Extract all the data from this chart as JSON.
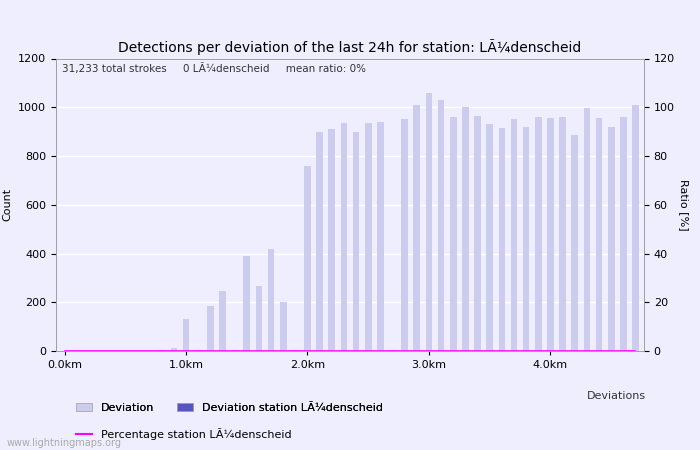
{
  "title": "Detections per deviation of the last 24h for station: LÃ¼denscheid",
  "annotation_parts": [
    "31,233 total strokes",
    "0 LÃ¼denscheid",
    "mean ratio: 0%"
  ],
  "ylabel_left": "Count",
  "ylabel_right": "Ratio [%]",
  "watermark": "www.lightningmaps.org",
  "ylim_left": [
    0,
    1200
  ],
  "ylim_right": [
    0,
    120
  ],
  "yticks_left": [
    0,
    200,
    400,
    600,
    800,
    1000,
    1200
  ],
  "yticks_right": [
    0,
    20,
    40,
    60,
    80,
    100,
    120
  ],
  "xtick_labels": [
    "0.0km",
    "1.0km",
    "2.0km",
    "3.0km",
    "4.0km"
  ],
  "xtick_positions": [
    0,
    10,
    20,
    30,
    40
  ],
  "bar_width": 0.55,
  "bar_color_light": "#ccccee",
  "bar_color_dark": "#5555bb",
  "line_color": "#ff00ff",
  "background_color": "#eeeeff",
  "grid_color": "#ffffff",
  "title_fontsize": 10,
  "label_fontsize": 8,
  "tick_fontsize": 8,
  "annotation_fontsize": 7.5,
  "legend_fontsize": 8,
  "bar_values": [
    2,
    1,
    0,
    0,
    0,
    1,
    0,
    1,
    5,
    12,
    130,
    5,
    185,
    245,
    5,
    390,
    265,
    420,
    200,
    3,
    760,
    900,
    910,
    935,
    900,
    935,
    940,
    5,
    950,
    1010,
    1060,
    1030,
    960,
    1000,
    965,
    930,
    915,
    950,
    920,
    960,
    955,
    960,
    885,
    995,
    955,
    920,
    960,
    1010
  ],
  "n_bars": 48,
  "ratio_values": [
    0,
    0,
    0,
    0,
    0,
    0,
    0,
    0,
    0,
    0,
    0,
    0,
    0,
    0,
    0,
    0,
    0,
    0,
    0,
    0,
    0,
    0,
    0,
    0,
    0,
    0,
    0,
    0,
    0,
    0,
    0,
    0,
    0,
    0,
    0,
    0,
    0,
    0,
    0,
    0,
    0,
    0,
    0,
    0,
    0,
    0,
    0,
    0
  ]
}
